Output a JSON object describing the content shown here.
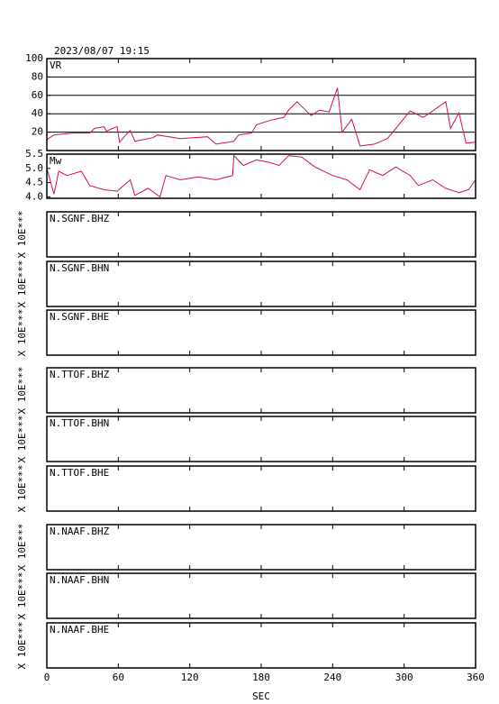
{
  "header": {
    "timestamp": "2023/08/07  19:15"
  },
  "x_axis": {
    "label": "SEC",
    "xlim": [
      0,
      360
    ],
    "xticks": [
      0,
      60,
      120,
      180,
      240,
      300,
      360
    ]
  },
  "chart_data": [
    {
      "type": "line",
      "ylim": [
        0,
        100
      ],
      "yticks": [
        20,
        40,
        60,
        80,
        100
      ],
      "grid": true,
      "x": [
        0,
        6,
        21,
        36,
        40,
        48,
        50,
        55,
        59,
        61,
        67,
        70,
        74,
        89,
        93,
        112,
        135,
        142,
        157,
        161,
        172,
        176,
        188,
        199,
        203,
        210,
        222,
        229,
        237,
        244,
        248,
        256,
        263,
        275,
        286,
        293,
        305,
        316,
        324,
        335,
        339,
        346,
        352,
        360
      ],
      "series": [
        {
          "name": "VR",
          "color": "#d0104c",
          "values": [
            12,
            17,
            19,
            19,
            24,
            26,
            21,
            24,
            26,
            9,
            18,
            22,
            10,
            14,
            17,
            13,
            15,
            7,
            10,
            17,
            19,
            28,
            33,
            36,
            44,
            53,
            38,
            44,
            42,
            68,
            20,
            34,
            5,
            7,
            13,
            24,
            43,
            36,
            43,
            53,
            24,
            41,
            8,
            9
          ]
        }
      ]
    },
    {
      "type": "line",
      "ylim": [
        3.95,
        5.5
      ],
      "yticks": [
        {
          "value": 4,
          "label": "4.0"
        },
        4.5,
        {
          "value": 5,
          "label": "5.0"
        },
        5.5
      ],
      "grid": false,
      "x": [
        0,
        6,
        10,
        17,
        29,
        36,
        48,
        59,
        70,
        74,
        85,
        95,
        100,
        112,
        127,
        142,
        156,
        157,
        165,
        176,
        188,
        195,
        203,
        214,
        225,
        240,
        252,
        263,
        271,
        282,
        293,
        305,
        312,
        324,
        335,
        346,
        354,
        360
      ],
      "series": [
        {
          "name": "Mw",
          "color": "#d0104c",
          "values": [
            5.0,
            4.1,
            4.9,
            4.75,
            4.9,
            4.4,
            4.25,
            4.2,
            4.6,
            4.05,
            4.3,
            4.0,
            4.75,
            4.6,
            4.7,
            4.6,
            4.75,
            5.45,
            5.1,
            5.3,
            5.2,
            5.1,
            5.45,
            5.4,
            5.05,
            4.75,
            4.6,
            4.25,
            4.95,
            4.75,
            5.05,
            4.75,
            4.4,
            4.6,
            4.3,
            4.15,
            4.25,
            4.6
          ]
        }
      ]
    }
  ],
  "waveform_panels": [
    {
      "label": "N.SGNF.BHZ",
      "y_label": "X 10E***"
    },
    {
      "label": "N.SGNF.BHN",
      "y_label": "X 10E***"
    },
    {
      "label": "N.SGNF.BHE",
      "y_label": "X 10E***"
    },
    {
      "label": "N.TTOF.BHZ",
      "y_label": "X 10E***"
    },
    {
      "label": "N.TTOF.BHN",
      "y_label": "X 10E***"
    },
    {
      "label": "N.TTOF.BHE",
      "y_label": "X 10E***"
    },
    {
      "label": "N.NAAF.BHZ",
      "y_label": "X 10E***"
    },
    {
      "label": "N.NAAF.BHN",
      "y_label": "X 10E***"
    },
    {
      "label": "N.NAAF.BHE",
      "y_label": "X 10E***"
    }
  ]
}
